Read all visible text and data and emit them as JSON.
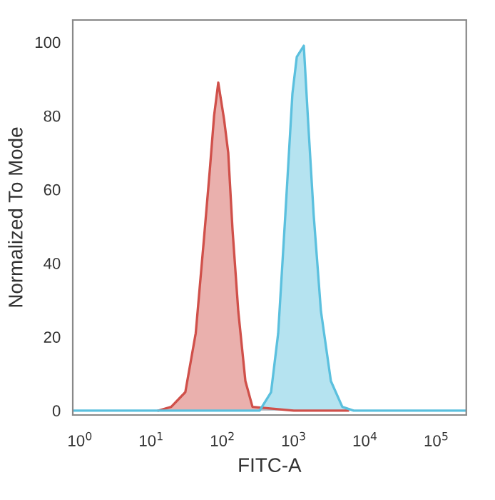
{
  "chart_data": {
    "type": "area",
    "xlabel": "FITC-A",
    "ylabel": "Normalized To Mode",
    "log": "x",
    "xlim": [
      0.79,
      263000
    ],
    "ylim": [
      -1.2,
      106
    ],
    "xticks": [
      {
        "value": 1,
        "label": "10$^{0}$"
      },
      {
        "value": 10,
        "label": "10$^{1}$"
      },
      {
        "value": 100,
        "label": "10$^{2}$"
      },
      {
        "value": 1000,
        "label": "10$^{3}$"
      },
      {
        "value": 10000,
        "label": "10$^{4}$"
      },
      {
        "value": 100000,
        "label": "10$^{5}$"
      }
    ],
    "yticks": [
      0,
      20,
      40,
      60,
      80,
      100
    ],
    "grid": false,
    "legend": false,
    "series": [
      {
        "color": "#d0504a",
        "x": [
          12.6,
          19,
          30,
          42,
          55,
          66,
          76,
          87,
          105,
          120,
          138,
          166,
          209,
          263,
          1000,
          5750
        ],
        "values": [
          0,
          1,
          5,
          21,
          47,
          65,
          80,
          89,
          79,
          70,
          49,
          27,
          8,
          1,
          0,
          0
        ]
      },
      {
        "color": "#5bc0de",
        "x": [
          0.79,
          200,
          331,
          479,
          603,
          759,
          955,
          1100,
          1380,
          1580,
          1900,
          2400,
          3310,
          4790,
          6900,
          263000
        ],
        "values": [
          0,
          0,
          0,
          5,
          21,
          53,
          86,
          96,
          99,
          79,
          53,
          27,
          8,
          1,
          0,
          0
        ]
      }
    ]
  }
}
